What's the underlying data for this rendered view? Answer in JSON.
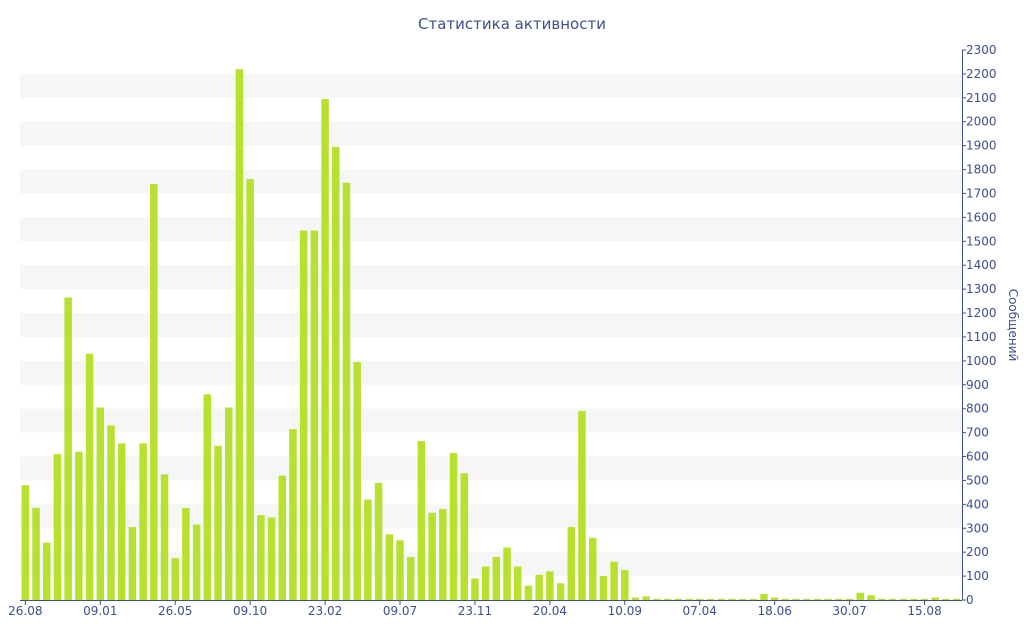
{
  "chart_data": {
    "type": "bar",
    "title": "Статистика активности",
    "ylabel": "Сообщений",
    "ylim": [
      0,
      2300
    ],
    "y_ticks": [
      0,
      100,
      200,
      300,
      400,
      500,
      600,
      700,
      800,
      900,
      1000,
      1100,
      1200,
      1300,
      1400,
      1500,
      1600,
      1700,
      1800,
      1900,
      2000,
      2100,
      2200,
      2300
    ],
    "x_tick_labels": [
      {
        "label": "26.08",
        "index": 0
      },
      {
        "label": "09.01",
        "index": 7
      },
      {
        "label": "26.05",
        "index": 14
      },
      {
        "label": "09.10",
        "index": 21
      },
      {
        "label": "23.02",
        "index": 28
      },
      {
        "label": "09.07",
        "index": 35
      },
      {
        "label": "23.11",
        "index": 42
      },
      {
        "label": "20.04",
        "index": 49
      },
      {
        "label": "10.09",
        "index": 56
      },
      {
        "label": "07.04",
        "index": 63
      },
      {
        "label": "18.06",
        "index": 70
      },
      {
        "label": "30.07",
        "index": 77
      },
      {
        "label": "15.08",
        "index": 84
      }
    ],
    "y_axis_position": "right",
    "grid": "alternating horizontal bands",
    "values": [
      480,
      385,
      240,
      610,
      1265,
      620,
      1030,
      805,
      730,
      655,
      305,
      655,
      1740,
      525,
      175,
      385,
      315,
      860,
      645,
      805,
      2220,
      1760,
      355,
      345,
      520,
      715,
      1545,
      1545,
      2095,
      1895,
      1745,
      995,
      420,
      490,
      275,
      250,
      180,
      665,
      365,
      380,
      615,
      530,
      90,
      140,
      180,
      220,
      140,
      60,
      105,
      120,
      70,
      305,
      790,
      260,
      100,
      160,
      125,
      10,
      15,
      5,
      5,
      5,
      5,
      5,
      5,
      5,
      5,
      5,
      5,
      25,
      10,
      5,
      5,
      5,
      5,
      5,
      5,
      5,
      30,
      20,
      5,
      5,
      5,
      5,
      5,
      10,
      5,
      5
    ]
  },
  "colors": {
    "bar": "#b8e02e",
    "band": "#f6f6f6",
    "text": "#3d4f8e",
    "axis": "#3d4f8e"
  }
}
